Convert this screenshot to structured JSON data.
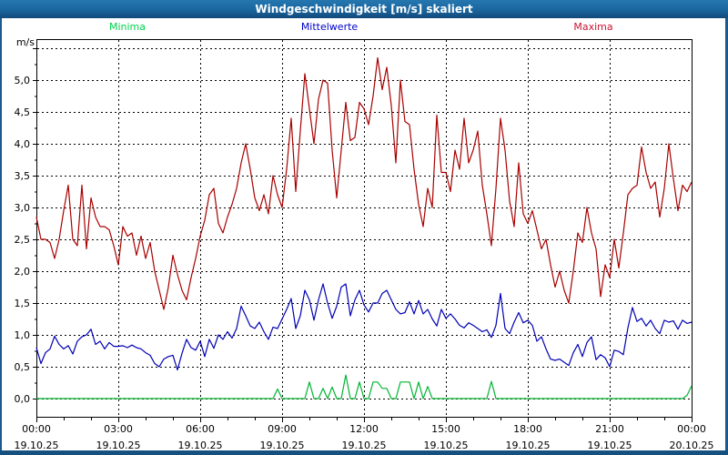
{
  "window": {
    "title": "Windgeschwindigkeit [m/s] skaliert"
  },
  "chart_data": {
    "type": "line",
    "title": "Windgeschwindigkeit [m/s] skaliert",
    "unit_label": "m/s",
    "time_step_minutes": 10,
    "grid": "dashed",
    "legend_position": "top",
    "ylim": [
      0,
      5.5
    ],
    "y_gridline_max": 5.5,
    "y_ticks": [
      {
        "value": 0.0,
        "label": "0,0"
      },
      {
        "value": 0.5,
        "label": "0,5"
      },
      {
        "value": 1.0,
        "label": "1,0"
      },
      {
        "value": 1.5,
        "label": "1,5"
      },
      {
        "value": 2.0,
        "label": "2,0"
      },
      {
        "value": 2.5,
        "label": "2,5"
      },
      {
        "value": 3.0,
        "label": "3,0"
      },
      {
        "value": 3.5,
        "label": "3,5"
      },
      {
        "value": 4.0,
        "label": "4,0"
      },
      {
        "value": 4.5,
        "label": "4,5"
      },
      {
        "value": 5.0,
        "label": "5,0"
      }
    ],
    "x_ticks": [
      {
        "hour": 0,
        "time": "00:00",
        "date": "19.10.25"
      },
      {
        "hour": 3,
        "time": "03:00",
        "date": "19.10.25"
      },
      {
        "hour": 6,
        "time": "06:00",
        "date": "19.10.25"
      },
      {
        "hour": 9,
        "time": "09:00",
        "date": "19.10.25"
      },
      {
        "hour": 12,
        "time": "12:00",
        "date": "19.10.25"
      },
      {
        "hour": 15,
        "time": "15:00",
        "date": "19.10.25"
      },
      {
        "hour": 18,
        "time": "18:00",
        "date": "19.10.25"
      },
      {
        "hour": 21,
        "time": "21:00",
        "date": "19.10.25"
      },
      {
        "hour": 24,
        "time": "00:00",
        "date": "20.10.25"
      }
    ],
    "series": [
      {
        "name": "Minima",
        "line_color": "#00b432",
        "label_color": "#00d24b",
        "values": [
          0,
          0,
          0,
          0,
          0,
          0,
          0,
          0,
          0,
          0,
          0,
          0,
          0,
          0,
          0,
          0,
          0,
          0,
          0,
          0,
          0,
          0,
          0,
          0,
          0,
          0,
          0,
          0,
          0,
          0,
          0,
          0,
          0,
          0,
          0,
          0,
          0,
          0,
          0,
          0,
          0,
          0,
          0,
          0,
          0,
          0,
          0,
          0,
          0,
          0,
          0,
          0,
          0,
          0.15,
          0,
          0,
          0,
          0,
          0,
          0,
          0.26,
          0,
          0,
          0.16,
          0,
          0.18,
          0,
          0,
          0.37,
          0,
          0,
          0.26,
          0,
          0,
          0.26,
          0.26,
          0.16,
          0.16,
          0,
          0,
          0.26,
          0.26,
          0.26,
          0,
          0.26,
          0,
          0.19,
          0,
          0,
          0,
          0,
          0,
          0,
          0,
          0,
          0,
          0,
          0,
          0,
          0,
          0.27,
          0,
          0,
          0,
          0,
          0,
          0,
          0,
          0,
          0,
          0,
          0,
          0,
          0,
          0,
          0,
          0,
          0,
          0,
          0,
          0,
          0,
          0,
          0,
          0,
          0,
          0,
          0,
          0,
          0,
          0,
          0,
          0,
          0,
          0,
          0,
          0,
          0,
          0,
          0,
          0,
          0,
          0,
          0.05,
          0.2
        ]
      },
      {
        "name": "Mittelwerte",
        "line_color": "#0000b4",
        "label_color": "#0000cd",
        "values": [
          0.8,
          0.55,
          0.72,
          0.78,
          0.98,
          0.85,
          0.78,
          0.83,
          0.7,
          0.9,
          0.97,
          1.0,
          1.09,
          0.85,
          0.9,
          0.78,
          0.88,
          0.82,
          0.82,
          0.83,
          0.8,
          0.84,
          0.8,
          0.78,
          0.72,
          0.68,
          0.55,
          0.5,
          0.62,
          0.66,
          0.68,
          0.45,
          0.71,
          0.93,
          0.8,
          0.76,
          0.9,
          0.66,
          0.93,
          0.79,
          1.0,
          0.93,
          1.05,
          0.95,
          1.1,
          1.45,
          1.3,
          1.14,
          1.1,
          1.2,
          1.05,
          0.93,
          1.12,
          1.1,
          1.25,
          1.4,
          1.57,
          1.1,
          1.3,
          1.7,
          1.55,
          1.23,
          1.55,
          1.8,
          1.5,
          1.26,
          1.45,
          1.75,
          1.8,
          1.3,
          1.55,
          1.7,
          1.47,
          1.36,
          1.5,
          1.5,
          1.65,
          1.7,
          1.55,
          1.4,
          1.33,
          1.35,
          1.52,
          1.33,
          1.54,
          1.33,
          1.4,
          1.25,
          1.14,
          1.4,
          1.26,
          1.33,
          1.25,
          1.15,
          1.11,
          1.19,
          1.15,
          1.1,
          1.05,
          1.08,
          0.96,
          1.15,
          1.65,
          1.1,
          1.02,
          1.2,
          1.35,
          1.19,
          1.23,
          1.15,
          0.9,
          0.97,
          0.78,
          0.62,
          0.6,
          0.62,
          0.57,
          0.52,
          0.72,
          0.85,
          0.66,
          0.88,
          0.97,
          0.61,
          0.69,
          0.64,
          0.5,
          0.76,
          0.74,
          0.69,
          1.11,
          1.43,
          1.21,
          1.26,
          1.14,
          1.23,
          1.1,
          1.02,
          1.23,
          1.2,
          1.22,
          1.09,
          1.23,
          1.18,
          1.2
        ]
      },
      {
        "name": "Maxima",
        "line_color": "#a80000",
        "label_color": "#cc1433",
        "values": [
          2.85,
          2.5,
          2.5,
          2.45,
          2.2,
          2.5,
          2.95,
          3.35,
          2.5,
          2.4,
          3.35,
          2.35,
          3.15,
          2.85,
          2.7,
          2.7,
          2.65,
          2.4,
          2.1,
          2.7,
          2.55,
          2.6,
          2.25,
          2.55,
          2.2,
          2.45,
          2.0,
          1.7,
          1.4,
          1.75,
          2.25,
          1.95,
          1.7,
          1.55,
          1.9,
          2.2,
          2.55,
          2.8,
          3.2,
          3.3,
          2.75,
          2.6,
          2.85,
          3.05,
          3.3,
          3.7,
          4.0,
          3.6,
          3.15,
          2.95,
          3.2,
          2.9,
          3.5,
          3.2,
          3.0,
          3.6,
          4.4,
          3.25,
          4.2,
          5.1,
          4.55,
          4.0,
          4.7,
          5.0,
          4.95,
          3.9,
          3.15,
          3.9,
          4.65,
          4.05,
          4.1,
          4.65,
          4.55,
          4.3,
          4.75,
          5.35,
          4.85,
          5.2,
          4.6,
          3.7,
          5.0,
          4.35,
          4.3,
          3.6,
          3.05,
          2.7,
          3.3,
          3.0,
          4.45,
          3.55,
          3.55,
          3.25,
          3.9,
          3.6,
          4.4,
          3.7,
          3.9,
          4.2,
          3.35,
          2.9,
          2.4,
          3.3,
          4.4,
          3.9,
          3.1,
          2.7,
          3.7,
          2.9,
          2.75,
          2.95,
          2.65,
          2.35,
          2.5,
          2.1,
          1.75,
          2.0,
          1.7,
          1.5,
          2.0,
          2.6,
          2.45,
          3.0,
          2.6,
          2.35,
          1.6,
          2.1,
          1.9,
          2.5,
          2.05,
          2.6,
          3.2,
          3.3,
          3.35,
          3.95,
          3.55,
          3.3,
          3.4,
          2.85,
          3.3,
          4.0,
          3.45,
          2.95,
          3.35,
          3.25,
          3.4
        ]
      }
    ]
  }
}
